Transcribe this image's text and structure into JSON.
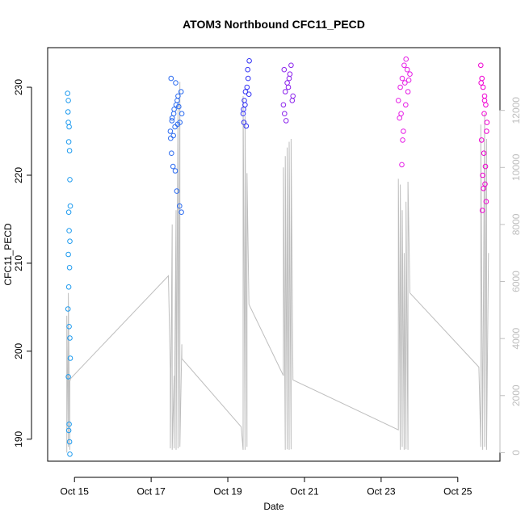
{
  "chart_data": {
    "type": "scatter",
    "title": "ATOM3 Northbound CFC11_PECD",
    "xlabel": "Date",
    "ylabel": "CFC11_PECD",
    "x_ticks": [
      "Oct 15",
      "Oct 17",
      "Oct 19",
      "Oct 21",
      "Oct 23",
      "Oct 25"
    ],
    "y_ticks": [
      "190",
      "200",
      "210",
      "220",
      "230"
    ],
    "y2_ticks": [
      "0",
      "2000",
      "4000",
      "6000",
      "8000",
      "10000",
      "12000"
    ],
    "xlim_days": [
      14.3,
      26.1
    ],
    "ylim": [
      187.5,
      234.5
    ],
    "y2lim": [
      -300,
      14200
    ],
    "grid": false,
    "legend": "none",
    "colors": {
      "points": [
        "#1E9BEF",
        "#2B6BF0",
        "#3333F5",
        "#8B22EC",
        "#E61EE6",
        "#F000D2"
      ],
      "secondary_line": "#BEBEBE"
    },
    "point_series": [
      {
        "x": [
          14.82,
          14.83,
          14.84,
          14.86,
          14.85,
          14.87,
          14.88,
          14.89,
          14.85,
          14.86,
          14.88,
          14.84,
          14.87,
          14.85,
          14.83,
          14.86,
          14.88,
          14.89,
          14.84,
          14.86,
          14.85,
          14.87,
          14.88,
          14.84
        ],
        "y": [
          229.3,
          227.2,
          226.0,
          225.5,
          223.8,
          222.8,
          219.5,
          216.5,
          215.8,
          213.7,
          212.5,
          211.0,
          209.5,
          207.3,
          204.8,
          202.8,
          201.5,
          199.2,
          197.1,
          191.7,
          191.0,
          189.7,
          188.3,
          228.5
        ]
      },
      {
        "x": [
          17.5,
          17.55,
          17.6,
          17.65,
          17.7,
          17.75,
          17.8,
          17.52,
          17.58,
          17.62,
          17.68,
          17.72,
          17.78,
          17.53,
          17.57,
          17.63,
          17.67,
          17.74,
          17.79,
          17.54,
          17.59,
          17.64,
          17.69,
          17.51
        ],
        "y": [
          225.0,
          226.5,
          227.5,
          228.0,
          229.0,
          226.0,
          227.0,
          231.0,
          224.5,
          225.5,
          228.5,
          227.8,
          229.5,
          222.5,
          221.0,
          220.5,
          218.2,
          216.5,
          215.8,
          226.2,
          227.0,
          230.5,
          225.8,
          224.2
        ]
      },
      {
        "x": [
          19.4,
          19.43,
          19.46,
          19.5,
          19.53,
          19.56,
          19.42,
          19.48,
          19.52,
          19.45,
          19.55,
          19.41
        ],
        "y": [
          227.0,
          228.5,
          229.5,
          230.0,
          231.0,
          233.0,
          226.0,
          225.6,
          232.0,
          228.0,
          229.2,
          227.5
        ]
      },
      {
        "x": [
          20.45,
          20.5,
          20.55,
          20.6,
          20.65,
          20.7,
          20.48,
          20.52,
          20.58,
          20.62,
          20.68,
          20.47
        ],
        "y": [
          228.0,
          229.5,
          230.5,
          231.0,
          232.5,
          229.0,
          227.0,
          226.2,
          230.0,
          231.5,
          228.5,
          232.0
        ]
      },
      {
        "x": [
          23.45,
          23.5,
          23.55,
          23.6,
          23.65,
          23.7,
          23.75,
          23.52,
          23.58,
          23.62,
          23.68,
          23.48,
          23.56,
          23.64,
          23.72,
          23.54
        ],
        "y": [
          228.5,
          230.0,
          231.0,
          232.5,
          233.2,
          229.5,
          231.5,
          227.0,
          225.0,
          230.5,
          232.0,
          226.5,
          224.0,
          228.0,
          230.8,
          221.2
        ]
      },
      {
        "x": [
          25.6,
          25.63,
          25.66,
          25.7,
          25.73,
          25.76,
          25.62,
          25.68,
          25.72,
          25.65,
          25.71,
          25.67,
          25.74,
          25.64,
          25.69,
          25.75,
          25.61,
          25.7
        ],
        "y": [
          232.5,
          231.0,
          230.0,
          229.0,
          228.0,
          226.0,
          224.0,
          222.5,
          221.0,
          220.0,
          219.0,
          218.5,
          217.0,
          216.0,
          227.0,
          225.0,
          230.5,
          228.5
        ]
      }
    ],
    "secondary_series": {
      "x": [
        14.8,
        14.8,
        14.84,
        14.84,
        14.88,
        14.88,
        14.9,
        17.45,
        17.5,
        17.5,
        17.55,
        17.55,
        17.6,
        17.6,
        17.65,
        17.65,
        17.7,
        17.7,
        17.75,
        17.75,
        17.8,
        17.8,
        19.35,
        19.4,
        19.4,
        19.45,
        19.45,
        19.5,
        19.5,
        19.55,
        20.45,
        20.45,
        20.5,
        20.5,
        20.55,
        20.55,
        20.6,
        20.6,
        20.65,
        20.65,
        20.7,
        23.45,
        23.45,
        23.5,
        23.5,
        23.55,
        23.55,
        23.6,
        23.6,
        23.65,
        23.65,
        23.7,
        23.7,
        23.75,
        25.55,
        25.6,
        25.6,
        25.65,
        25.65,
        25.7,
        25.7,
        25.75,
        25.75,
        25.8
      ],
      "y": [
        0,
        4800,
        200,
        5600,
        100,
        2500,
        2600,
        6200,
        2900,
        150,
        8000,
        100,
        2700,
        150,
        8500,
        100,
        12300,
        150,
        13000,
        200,
        3800,
        3300,
        900,
        100,
        12500,
        100,
        11800,
        200,
        9800,
        5200,
        2700,
        10000,
        100,
        10400,
        120,
        10700,
        100,
        10900,
        120,
        11000,
        2550,
        800,
        9600,
        100,
        9400,
        200,
        8500,
        100,
        7000,
        120,
        8800,
        100,
        9500,
        5600,
        3000,
        200,
        11500,
        100,
        1000,
        11900,
        200,
        11000,
        100,
        7000
      ]
    }
  }
}
